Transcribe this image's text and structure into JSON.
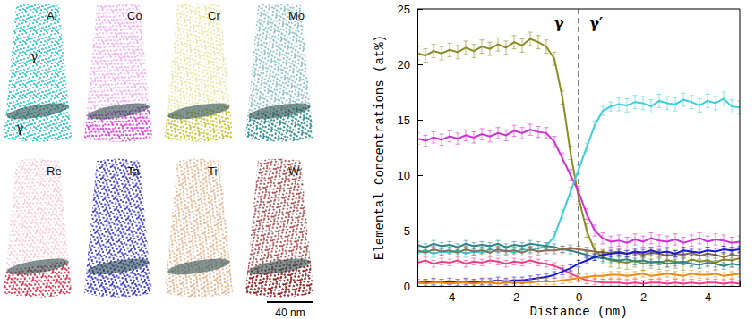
{
  "apt_maps": {
    "panels": [
      {
        "element": "Al",
        "color": "#2cc9cf"
      },
      {
        "element": "Co",
        "color": "#d83ad8"
      },
      {
        "element": "Cr",
        "color": "#c2c228"
      },
      {
        "element": "Mo",
        "color": "#2a8a8c"
      },
      {
        "element": "Re",
        "color": "#d0203e"
      },
      {
        "element": "Ta",
        "color": "#2222c2"
      },
      {
        "element": "Ti",
        "color": "#e0b088"
      },
      {
        "element": "W",
        "color": "#8b1a1a"
      }
    ],
    "phase_labels": [
      "γ′",
      "γ"
    ],
    "scale_bar": "40 nm"
  },
  "chart_data": {
    "type": "line",
    "xlabel": "Distance (nm)",
    "ylabel": "Elemental Concentrations (at%)",
    "xlim": [
      -5,
      5
    ],
    "xticks": [
      -4,
      -2,
      0,
      2,
      4
    ],
    "ylim": [
      0,
      25
    ],
    "yticks": [
      0,
      5,
      10,
      15,
      20,
      25
    ],
    "grid": false,
    "x": [
      -5,
      -4.75,
      -4.5,
      -4.25,
      -4,
      -3.75,
      -3.5,
      -3.25,
      -3,
      -2.75,
      -2.5,
      -2.25,
      -2,
      -1.75,
      -1.5,
      -1.25,
      -1,
      -0.75,
      -0.5,
      -0.25,
      0,
      0.25,
      0.5,
      0.75,
      1,
      1.25,
      1.5,
      1.75,
      2,
      2.25,
      2.5,
      2.75,
      3,
      3.25,
      3.5,
      3.75,
      4,
      4.25,
      4.5,
      4.75,
      5
    ],
    "series": [
      {
        "color": "#8c8c1e",
        "values": [
          21.0,
          20.8,
          21.2,
          21.0,
          21.3,
          21.1,
          21.5,
          21.2,
          21.6,
          21.4,
          21.8,
          21.5,
          22.0,
          21.7,
          22.3,
          22.0,
          21.6,
          20.5,
          17.0,
          12.0,
          8.0,
          5.0,
          3.2,
          2.6,
          2.3,
          2.2,
          2.1,
          2.3,
          2.0,
          2.2,
          2.1,
          2.3,
          2.2,
          2.0,
          2.4,
          2.2,
          2.3,
          2.1,
          2.4,
          2.3,
          2.5
        ],
        "errors": [
          0.6,
          0.6,
          0.6,
          0.6,
          0.6,
          0.6,
          0.6,
          0.6,
          0.6,
          0.6,
          0.6,
          0.6,
          0.6,
          0.6,
          0.6,
          0.6,
          0.6,
          0.6,
          0.6,
          0.6,
          0.6,
          0.6,
          0.6,
          0.6,
          0.6,
          0.6,
          0.6,
          0.6,
          0.6,
          0.6,
          0.6,
          0.6,
          0.6,
          0.6,
          0.6,
          0.6,
          0.6,
          0.6,
          0.6,
          0.6,
          0.6
        ]
      },
      {
        "color": "#d22fd2",
        "values": [
          13.3,
          13.1,
          13.4,
          13.2,
          13.5,
          13.3,
          13.6,
          13.4,
          13.7,
          13.5,
          13.8,
          13.6,
          14.0,
          13.8,
          14.1,
          13.9,
          13.8,
          13.0,
          11.5,
          10.0,
          8.5,
          6.5,
          5.0,
          4.3,
          4.0,
          4.1,
          3.9,
          4.2,
          4.0,
          4.3,
          4.1,
          4.0,
          4.2,
          3.9,
          4.1,
          4.3,
          4.0,
          4.2,
          4.1,
          3.9,
          4.0
        ],
        "errors": [
          0.5,
          0.5,
          0.5,
          0.5,
          0.5,
          0.5,
          0.5,
          0.5,
          0.5,
          0.5,
          0.5,
          0.5,
          0.5,
          0.5,
          0.5,
          0.5,
          0.5,
          0.5,
          0.5,
          0.5,
          0.5,
          0.5,
          0.5,
          0.5,
          0.5,
          0.5,
          0.5,
          0.5,
          0.5,
          0.5,
          0.5,
          0.5,
          0.5,
          0.5,
          0.5,
          0.5,
          0.5,
          0.5,
          0.5,
          0.5,
          0.5
        ]
      },
      {
        "color": "#3ccfd8",
        "values": [
          3.0,
          3.2,
          2.9,
          3.1,
          3.0,
          3.2,
          2.9,
          3.1,
          3.0,
          3.3,
          3.1,
          3.2,
          3.0,
          3.3,
          3.2,
          3.4,
          3.6,
          4.5,
          6.5,
          8.5,
          10.5,
          12.5,
          14.5,
          15.8,
          16.2,
          16.4,
          16.3,
          16.6,
          16.5,
          16.2,
          16.7,
          16.5,
          16.4,
          16.8,
          16.6,
          16.3,
          16.7,
          16.5,
          16.9,
          16.2,
          16.1
        ],
        "errors": [
          0.3,
          0.3,
          0.3,
          0.3,
          0.3,
          0.3,
          0.3,
          0.3,
          0.3,
          0.3,
          0.3,
          0.3,
          0.3,
          0.3,
          0.3,
          0.3,
          0.3,
          0.4,
          0.4,
          0.4,
          0.4,
          0.4,
          0.4,
          0.4,
          0.4,
          0.6,
          0.6,
          0.6,
          0.6,
          0.6,
          0.6,
          0.6,
          0.6,
          0.6,
          0.6,
          0.6,
          0.6,
          0.6,
          0.6,
          0.6,
          0.6
        ]
      },
      {
        "color": "#2e8585",
        "values": [
          3.7,
          3.5,
          3.8,
          3.6,
          3.7,
          3.5,
          3.8,
          3.6,
          3.7,
          3.6,
          3.8,
          3.5,
          3.7,
          3.6,
          3.8,
          3.7,
          3.6,
          3.5,
          3.3,
          3.2,
          3.0,
          2.8,
          2.6,
          2.5,
          2.4,
          2.3,
          2.4,
          2.2,
          2.3,
          2.1,
          2.2,
          2.0,
          2.1,
          2.2,
          2.0,
          1.9,
          2.1,
          2.0,
          1.8,
          2.0,
          1.9
        ],
        "errors": [
          0.3,
          0.3,
          0.3,
          0.3,
          0.3,
          0.3,
          0.3,
          0.3,
          0.3,
          0.3,
          0.3,
          0.3,
          0.3,
          0.3,
          0.3,
          0.3,
          0.3,
          0.3,
          0.3,
          0.3,
          0.3,
          0.3,
          0.3,
          0.3,
          0.3,
          0.3,
          0.3,
          0.3,
          0.3,
          0.3,
          0.3,
          0.3,
          0.3,
          0.3,
          0.3,
          0.3,
          0.3,
          0.3,
          0.3,
          0.3,
          0.3
        ]
      },
      {
        "color": "#8a6a50",
        "values": [
          3.2,
          3.0,
          3.3,
          3.1,
          3.2,
          3.0,
          3.3,
          3.1,
          3.2,
          3.0,
          3.3,
          3.1,
          3.2,
          3.0,
          3.3,
          3.1,
          3.2,
          3.2,
          3.3,
          3.4,
          3.3,
          3.2,
          3.1,
          3.0,
          3.0,
          3.1,
          2.9,
          3.0,
          2.8,
          3.0,
          2.9,
          2.7,
          2.9,
          2.8,
          3.0,
          2.7,
          2.9,
          2.8,
          2.6,
          2.8,
          2.7
        ],
        "errors": [
          0.3,
          0.3,
          0.3,
          0.3,
          0.3,
          0.3,
          0.3,
          0.3,
          0.3,
          0.3,
          0.3,
          0.3,
          0.3,
          0.3,
          0.3,
          0.3,
          0.3,
          0.3,
          0.3,
          0.3,
          0.3,
          0.3,
          0.3,
          0.3,
          0.3,
          0.3,
          0.3,
          0.3,
          0.3,
          0.3,
          0.3,
          0.3,
          0.3,
          0.3,
          0.3,
          0.3,
          0.3,
          0.3,
          0.3,
          0.3,
          0.3
        ]
      },
      {
        "color": "#e8408a",
        "values": [
          2.1,
          2.3,
          2.0,
          2.2,
          2.1,
          2.3,
          2.0,
          2.2,
          2.1,
          2.3,
          2.2,
          2.0,
          2.2,
          2.1,
          2.3,
          2.1,
          2.0,
          1.8,
          1.5,
          1.1,
          0.8,
          0.5,
          0.4,
          0.3,
          0.3,
          0.3,
          0.2,
          0.3,
          0.2,
          0.3,
          0.3,
          0.2,
          0.3,
          0.2,
          0.3,
          0.2,
          0.3,
          0.3,
          0.2,
          0.3,
          0.2
        ],
        "errors": [
          0.3,
          0.3,
          0.3,
          0.3,
          0.3,
          0.3,
          0.3,
          0.3,
          0.3,
          0.3,
          0.3,
          0.3,
          0.3,
          0.3,
          0.3,
          0.3,
          0.3,
          0.3,
          0.3,
          0.3,
          0.3,
          0.3,
          0.3,
          0.3,
          0.3,
          0.3,
          0.3,
          0.3,
          0.3,
          0.3,
          0.3,
          0.3,
          0.3,
          0.3,
          0.3,
          0.3,
          0.3,
          0.3,
          0.3,
          0.3,
          0.3
        ]
      },
      {
        "color": "#1a1acc",
        "values": [
          0.3,
          0.3,
          0.4,
          0.3,
          0.4,
          0.3,
          0.4,
          0.3,
          0.4,
          0.4,
          0.5,
          0.4,
          0.5,
          0.5,
          0.6,
          0.7,
          0.8,
          1.0,
          1.3,
          1.6,
          2.0,
          2.3,
          2.6,
          2.8,
          2.9,
          3.0,
          2.9,
          3.1,
          3.0,
          3.2,
          3.0,
          3.1,
          2.9,
          3.2,
          3.1,
          3.0,
          3.2,
          3.1,
          3.3,
          3.2,
          3.3
        ],
        "errors": [
          0.3,
          0.3,
          0.3,
          0.3,
          0.3,
          0.3,
          0.3,
          0.3,
          0.3,
          0.3,
          0.3,
          0.3,
          0.3,
          0.3,
          0.3,
          0.3,
          0.3,
          0.3,
          0.3,
          0.3,
          0.3,
          0.3,
          0.3,
          0.3,
          0.3,
          0.3,
          0.3,
          0.3,
          0.3,
          0.3,
          0.3,
          0.3,
          0.3,
          0.3,
          0.3,
          0.3,
          0.3,
          0.3,
          0.3,
          0.3,
          0.3
        ]
      },
      {
        "color": "#ee8a10",
        "values": [
          0.3,
          0.2,
          0.3,
          0.3,
          0.2,
          0.3,
          0.3,
          0.2,
          0.3,
          0.3,
          0.2,
          0.3,
          0.3,
          0.3,
          0.3,
          0.4,
          0.4,
          0.4,
          0.5,
          0.6,
          0.7,
          0.8,
          0.9,
          0.9,
          1.0,
          1.0,
          0.9,
          1.0,
          1.1,
          0.9,
          1.0,
          1.1,
          1.0,
          0.9,
          1.1,
          1.0,
          1.0,
          1.1,
          0.9,
          1.0,
          1.1
        ],
        "errors": [
          0.3,
          0.3,
          0.3,
          0.3,
          0.3,
          0.3,
          0.3,
          0.3,
          0.3,
          0.3,
          0.3,
          0.3,
          0.3,
          0.3,
          0.3,
          0.3,
          0.3,
          0.3,
          0.3,
          0.3,
          0.3,
          0.3,
          0.3,
          0.3,
          0.3,
          0.3,
          0.3,
          0.3,
          0.3,
          0.3,
          0.3,
          0.3,
          0.3,
          0.3,
          0.3,
          0.3,
          0.3,
          0.3,
          0.3,
          0.3,
          0.3
        ]
      }
    ],
    "reference_lines": [
      {
        "x": 0,
        "line_style": "dashed"
      }
    ],
    "annotations": [
      {
        "text": "γ",
        "x": -0.6,
        "y": 23.3
      },
      {
        "text": "γ′",
        "x": 0.55,
        "y": 23.3
      }
    ]
  }
}
